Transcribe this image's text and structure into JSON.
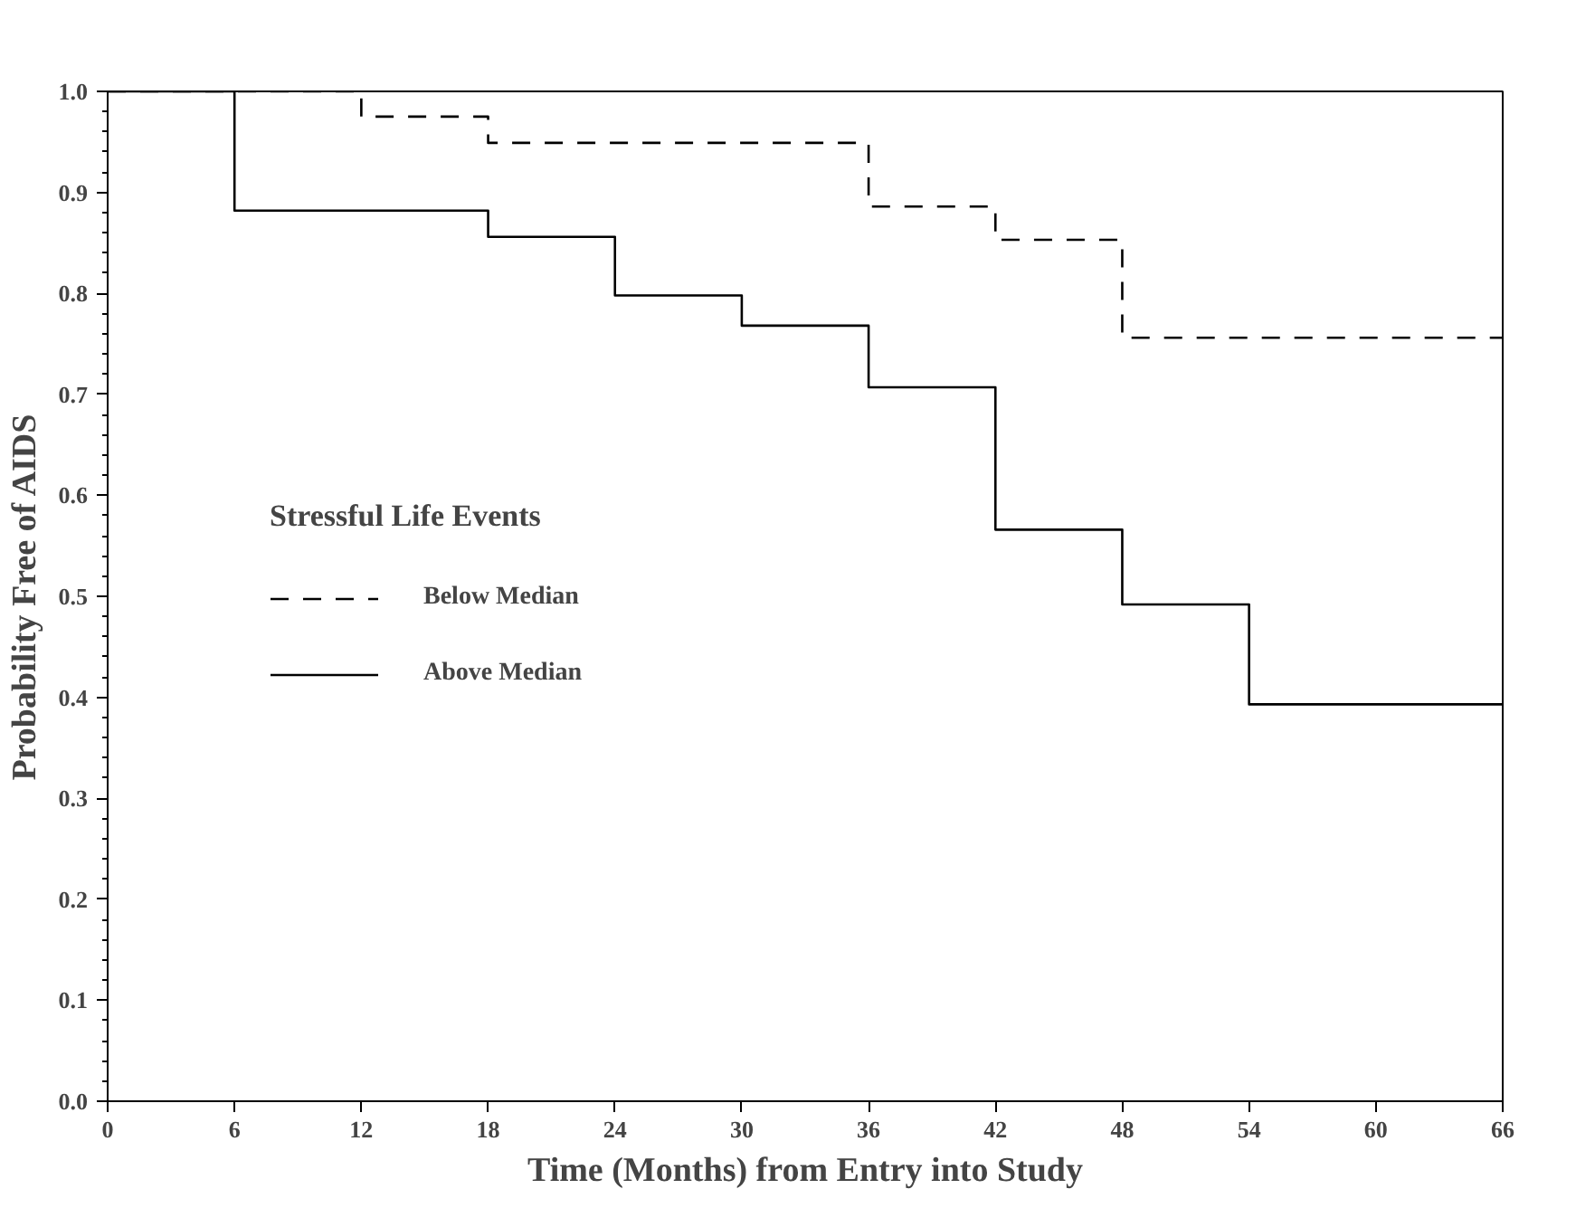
{
  "chart_data": {
    "type": "step",
    "xlabel": "Time (Months) from Entry into Study",
    "ylabel": "Probability Free of AIDS",
    "legend_title": "Stressful Life Events",
    "legend": "left",
    "xlim": [
      0,
      66
    ],
    "xticks": [
      0,
      6,
      12,
      18,
      24,
      30,
      36,
      42,
      48,
      54,
      60,
      66
    ],
    "ylim": [
      0,
      1
    ],
    "yticks": [
      {
        "value": 0,
        "label": "0.0"
      },
      0.1,
      0.2,
      0.3,
      0.4,
      0.5,
      0.6,
      0.7,
      0.8,
      0.9,
      {
        "value": 1,
        "label": "1.0"
      }
    ],
    "grid": false,
    "marker": "none",
    "series": [
      {
        "name": "Below Median",
        "color": "#000000",
        "line_style": "dashed",
        "x": [
          0,
          12,
          18,
          36,
          42,
          48,
          66
        ],
        "values": [
          1,
          0.975,
          0.949,
          0.886,
          0.853,
          0.756,
          0.756
        ]
      },
      {
        "name": "Above Median",
        "color": "#000000",
        "line_style": "solid",
        "x": [
          0,
          6,
          18,
          24,
          30,
          36,
          42,
          48,
          54,
          66
        ],
        "values": [
          1,
          0.882,
          0.856,
          0.798,
          0.768,
          0.707,
          0.566,
          0.492,
          0.393,
          0.393
        ]
      }
    ]
  }
}
